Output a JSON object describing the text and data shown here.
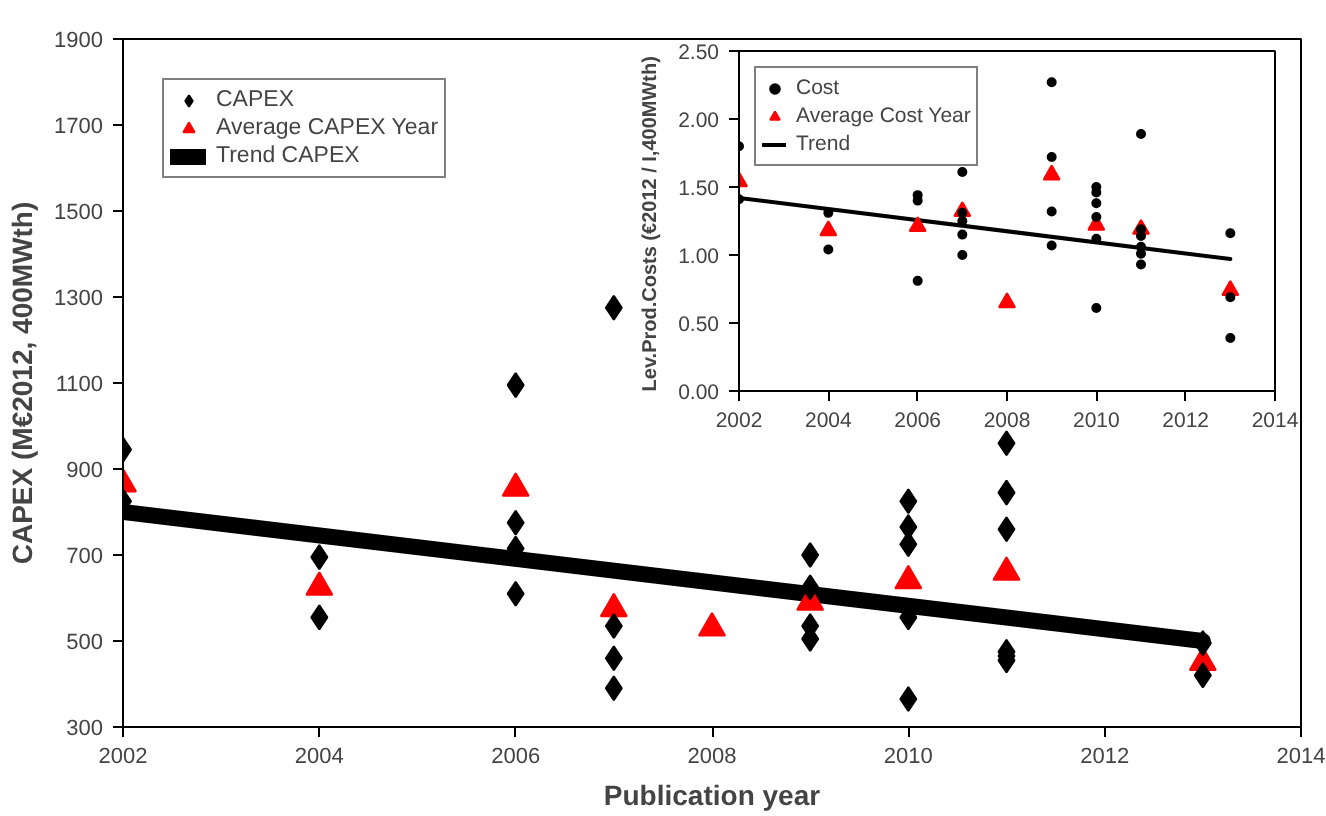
{
  "chart_data": [
    {
      "type": "scatter",
      "xlabel": "Publication year",
      "ylabel": "CAPEX (M€2012, 400MWth)",
      "xlim": [
        2002,
        2014
      ],
      "xticks": [
        2002,
        2004,
        2006,
        2008,
        2010,
        2012,
        2014
      ],
      "ylim": [
        300,
        1900
      ],
      "yticks": [
        300,
        500,
        700,
        900,
        1100,
        1300,
        1500,
        1700,
        1900
      ],
      "grid": false,
      "legend": "top left",
      "series": [
        {
          "name": "CAPEX",
          "marker": "diamond",
          "color": "#000000",
          "x": [
            2002,
            2002,
            2004,
            2004,
            2006,
            2006,
            2006,
            2006,
            2007,
            2007,
            2007,
            2007,
            2009,
            2009,
            2009,
            2009,
            2010,
            2010,
            2010,
            2010,
            2010,
            2011,
            2011,
            2011,
            2011,
            2011,
            2011,
            2013,
            2013
          ],
          "values": [
            945,
            825,
            695,
            555,
            1095,
            775,
            715,
            610,
            1275,
            535,
            460,
            390,
            700,
            625,
            535,
            505,
            825,
            765,
            725,
            555,
            365,
            960,
            845,
            760,
            475,
            465,
            455,
            495,
            420
          ]
        },
        {
          "name": "Average CAPEX Year",
          "marker": "triangle",
          "color": "#ff0000",
          "x": [
            2002,
            2004,
            2006,
            2007,
            2008,
            2009,
            2010,
            2011,
            2013
          ],
          "values": [
            865,
            625,
            855,
            575,
            530,
            590,
            640,
            660,
            450
          ]
        },
        {
          "name": "Trend CAPEX",
          "type": "line",
          "color": "#000000",
          "x": [
            2002,
            2013
          ],
          "values": [
            800,
            500
          ]
        }
      ]
    },
    {
      "type": "scatter",
      "ylabel": "Lev.Prod.Costs  (€2012 / I,400MWth)",
      "xlim": [
        2002,
        2014
      ],
      "xticks": [
        2002,
        2004,
        2006,
        2008,
        2010,
        2012,
        2014
      ],
      "ylim": [
        0,
        2.5
      ],
      "yticks": [
        {
          "value": 0,
          "label": "0.00"
        },
        {
          "value": 0.5,
          "label": "0.50"
        },
        {
          "value": 1,
          "label": "1.00"
        },
        {
          "value": 1.5,
          "label": "1.50"
        },
        {
          "value": 2,
          "label": "2.00"
        },
        {
          "value": 2.5,
          "label": "2.50"
        }
      ],
      "grid": false,
      "legend": "top left",
      "series": [
        {
          "name": "Cost",
          "marker": "circle",
          "color": "#000000",
          "x": [
            2002,
            2002,
            2004,
            2004,
            2006,
            2006,
            2006,
            2007,
            2007,
            2007,
            2007,
            2007,
            2009,
            2009,
            2009,
            2009,
            2010,
            2010,
            2010,
            2010,
            2010,
            2010,
            2011,
            2011,
            2011,
            2011,
            2011,
            2011,
            2013,
            2013,
            2013
          ],
          "values": [
            1.8,
            1.41,
            1.31,
            1.04,
            1.44,
            1.4,
            0.81,
            1.61,
            1.31,
            1.25,
            1.15,
            1.0,
            2.27,
            1.72,
            1.32,
            1.07,
            1.5,
            1.46,
            1.38,
            1.28,
            1.12,
            0.61,
            1.89,
            1.19,
            1.14,
            1.06,
            1.01,
            0.93,
            1.16,
            0.69,
            0.39
          ]
        },
        {
          "name": "Average Cost Year",
          "marker": "triangle",
          "color": "#ff0000",
          "x": [
            2002,
            2004,
            2006,
            2007,
            2008,
            2009,
            2010,
            2011,
            2013
          ],
          "values": [
            1.54,
            1.18,
            1.21,
            1.32,
            0.65,
            1.59,
            1.22,
            1.19,
            0.74
          ]
        },
        {
          "name": "Trend",
          "type": "line",
          "color": "#000000",
          "x": [
            2002,
            2013
          ],
          "values": [
            1.42,
            0.97
          ]
        }
      ]
    }
  ]
}
